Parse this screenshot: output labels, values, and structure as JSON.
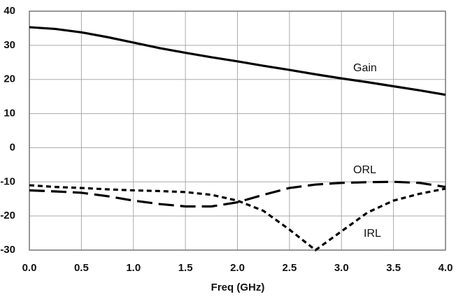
{
  "chart_data": {
    "type": "line",
    "x_label": "Freq (GHz)",
    "x": [
      0,
      0.25,
      0.5,
      0.75,
      1.0,
      1.25,
      1.5,
      1.75,
      2.0,
      2.25,
      2.5,
      2.75,
      3.0,
      3.25,
      3.5,
      3.75,
      4.0
    ],
    "series": [
      {
        "name": "Gain",
        "color": "#000000",
        "dash": "solid",
        "values": [
          35.3,
          34.8,
          33.8,
          32.4,
          30.8,
          29.2,
          27.8,
          26.5,
          25.3,
          24.0,
          22.8,
          21.5,
          20.3,
          19.2,
          18.0,
          16.8,
          15.5
        ]
      },
      {
        "name": "ORL",
        "color": "#000000",
        "dash": "long",
        "values": [
          -12.5,
          -12.8,
          -13.2,
          -14.2,
          -15.5,
          -16.5,
          -17.2,
          -17.2,
          -16.0,
          -13.8,
          -11.8,
          -10.8,
          -10.3,
          -10.1,
          -10.0,
          -10.3,
          -11.5
        ]
      },
      {
        "name": "IRL",
        "color": "#000000",
        "dash": "short",
        "values": [
          -11.0,
          -11.5,
          -11.8,
          -12.2,
          -12.5,
          -12.7,
          -13.0,
          -13.8,
          -15.5,
          -18.5,
          -24.0,
          -30.0,
          -24.5,
          -19.0,
          -15.5,
          -13.5,
          -12.0
        ]
      }
    ],
    "xlim": [
      0,
      4.0
    ],
    "xticks": [
      {
        "value": 0,
        "label": "0.0"
      },
      0.5,
      {
        "value": 1,
        "label": "1.0"
      },
      1.5,
      {
        "value": 2,
        "label": "2.0"
      },
      2.5,
      {
        "value": 3,
        "label": "3.0"
      },
      3.5,
      {
        "value": 4,
        "label": "4.0"
      }
    ],
    "ylim": [
      -30,
      40
    ],
    "yticks": [
      -30,
      -20,
      -10,
      0,
      10,
      20,
      30,
      40
    ],
    "grid": true
  }
}
